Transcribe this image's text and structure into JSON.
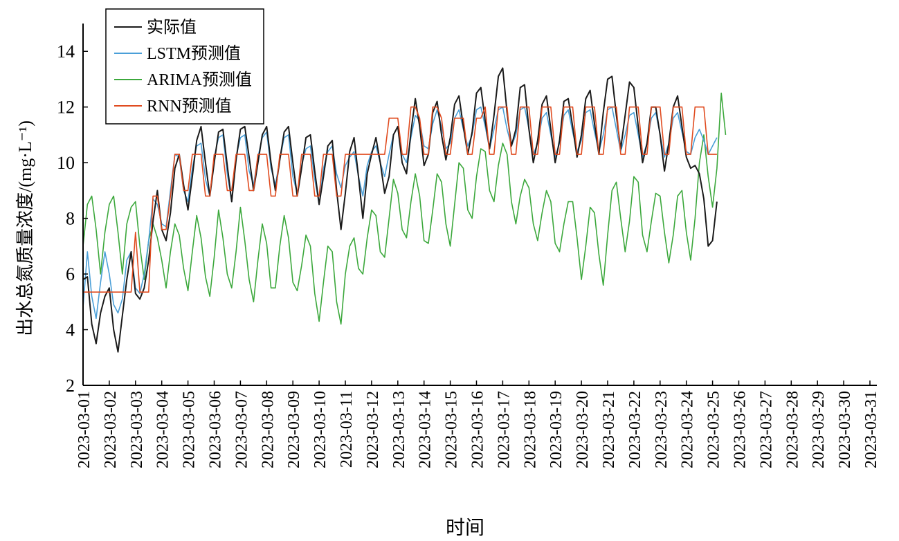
{
  "chart_data": {
    "type": "line",
    "title": "",
    "xlabel": "时间",
    "ylabel": "出水总氮质量浓度/(mg·L⁻¹)",
    "ylim": [
      2,
      15
    ],
    "y_ticks": [
      2,
      4,
      6,
      8,
      10,
      12,
      14
    ],
    "x_start_date": "2023-03-01",
    "x_end_date": "2023-03-31",
    "samples_per_day": 6,
    "x_tick_labels": [
      "2023-03-01",
      "2023-03-02",
      "2023-03-03",
      "2023-03-04",
      "2023-03-05",
      "2023-03-06",
      "2023-03-07",
      "2023-03-08",
      "2023-03-09",
      "2023-03-10",
      "2023-03-11",
      "2023-03-12",
      "2023-03-13",
      "2023-03-14",
      "2023-03-15",
      "2023-03-16",
      "2023-03-17",
      "2023-03-18",
      "2023-03-19",
      "2023-03-20",
      "2023-03-21",
      "2023-03-22",
      "2023-03-23",
      "2023-03-24",
      "2023-03-25",
      "2023-03-26",
      "2023-03-27",
      "2023-03-28",
      "2023-03-29",
      "2023-03-30",
      "2023-03-31"
    ],
    "legend_position": "top-left",
    "grid": false,
    "series": [
      {
        "name": "实际值",
        "color": "#1a1a1a",
        "values": [
          5.8,
          5.9,
          4.2,
          3.5,
          4.6,
          5.2,
          5.5,
          4.0,
          3.2,
          4.5,
          5.8,
          6.8,
          5.3,
          5.1,
          5.5,
          6.5,
          7.9,
          9.0,
          7.6,
          7.2,
          8.2,
          9.8,
          10.3,
          9.2,
          8.3,
          9.5,
          10.8,
          11.3,
          10.0,
          8.8,
          10.0,
          11.1,
          11.2,
          9.9,
          8.6,
          10.1,
          11.2,
          11.3,
          10.2,
          9.0,
          10.0,
          11.0,
          11.3,
          10.0,
          9.0,
          10.1,
          11.1,
          11.3,
          10.0,
          8.8,
          9.8,
          10.9,
          11.0,
          9.7,
          8.5,
          9.5,
          10.6,
          10.8,
          9.0,
          7.6,
          8.9,
          10.4,
          10.9,
          9.5,
          8.0,
          9.6,
          10.3,
          10.9,
          10.0,
          8.9,
          9.5,
          11.0,
          11.3,
          10.0,
          9.6,
          11.1,
          12.3,
          11.3,
          9.9,
          10.3,
          11.8,
          12.2,
          11.0,
          10.1,
          10.9,
          12.1,
          12.4,
          11.3,
          10.3,
          11.1,
          12.5,
          12.7,
          11.5,
          10.5,
          11.7,
          13.1,
          13.4,
          11.8,
          10.6,
          11.2,
          12.7,
          12.8,
          11.2,
          10.0,
          10.8,
          12.1,
          12.4,
          11.2,
          10.0,
          10.8,
          12.2,
          12.3,
          11.3,
          10.2,
          11.0,
          12.3,
          12.6,
          11.4,
          10.3,
          11.8,
          13.0,
          13.1,
          11.7,
          10.5,
          11.7,
          12.9,
          12.7,
          11.3,
          10.0,
          10.7,
          12.0,
          12.0,
          11.0,
          9.7,
          10.7,
          12.0,
          12.4,
          11.3,
          10.2,
          9.8,
          9.9,
          9.6,
          8.7,
          7.0,
          7.2,
          8.6
        ]
      },
      {
        "name": "LSTM预测值",
        "color": "#4a9fd8",
        "values": [
          4.8,
          6.8,
          5.2,
          4.4,
          5.7,
          6.8,
          6.0,
          4.9,
          4.6,
          5.1,
          6.5,
          6.8,
          5.5,
          5.3,
          6.0,
          7.2,
          8.7,
          8.5,
          7.8,
          7.7,
          9.0,
          10.3,
          10.2,
          9.0,
          8.6,
          9.8,
          10.6,
          10.7,
          9.4,
          8.8,
          10.2,
          10.9,
          11.0,
          9.6,
          8.6,
          10.2,
          10.9,
          11.0,
          9.7,
          9.2,
          10.2,
          10.9,
          11.1,
          9.8,
          9.2,
          10.1,
          10.9,
          11.0,
          9.5,
          8.9,
          9.9,
          10.5,
          10.6,
          9.4,
          8.5,
          9.8,
          10.4,
          10.6,
          9.6,
          9.1,
          9.9,
          10.2,
          10.4,
          9.5,
          8.8,
          9.9,
          10.4,
          10.6,
          10.0,
          9.5,
          10.3,
          11.0,
          11.3,
          10.3,
          10.0,
          10.9,
          11.7,
          11.5,
          10.6,
          10.5,
          11.4,
          11.9,
          11.3,
          10.5,
          10.7,
          11.6,
          11.9,
          11.2,
          10.6,
          11.0,
          11.9,
          12.0,
          11.3,
          10.5,
          11.2,
          11.9,
          12.0,
          11.2,
          10.6,
          11.0,
          11.9,
          12.0,
          11.2,
          10.3,
          10.7,
          11.6,
          11.8,
          11.0,
          10.2,
          10.7,
          11.7,
          11.9,
          11.1,
          10.4,
          10.8,
          11.8,
          11.9,
          11.1,
          10.4,
          11.0,
          11.9,
          12.0,
          11.2,
          10.4,
          11.0,
          11.7,
          11.8,
          11.0,
          10.2,
          10.7,
          11.6,
          11.8,
          11.0,
          10.2,
          10.7,
          11.6,
          11.8,
          11.1,
          10.4,
          10.3,
          10.9,
          11.2,
          10.8,
          10.3,
          10.6,
          10.9
        ]
      },
      {
        "name": "ARIMA预测值",
        "color": "#3ca83c",
        "values": [
          7.0,
          8.5,
          8.8,
          7.6,
          6.0,
          7.5,
          8.5,
          8.8,
          7.5,
          6.0,
          7.8,
          8.4,
          8.6,
          7.0,
          5.8,
          7.2,
          7.8,
          7.3,
          6.5,
          5.5,
          6.8,
          7.8,
          7.4,
          6.2,
          5.4,
          6.8,
          8.1,
          7.3,
          5.9,
          5.2,
          6.6,
          8.3,
          7.3,
          6.0,
          5.5,
          6.8,
          8.4,
          7.2,
          5.8,
          5.0,
          6.5,
          7.8,
          7.1,
          5.5,
          5.5,
          7.0,
          8.1,
          7.3,
          5.7,
          5.4,
          6.3,
          7.4,
          7.0,
          5.3,
          4.3,
          5.7,
          7.0,
          6.8,
          5.0,
          4.2,
          6.0,
          7.0,
          7.3,
          6.2,
          6.0,
          7.3,
          8.3,
          8.1,
          6.8,
          6.6,
          8.0,
          9.4,
          8.9,
          7.6,
          7.3,
          8.6,
          9.6,
          8.8,
          7.2,
          7.1,
          8.3,
          9.6,
          9.3,
          7.8,
          7.0,
          8.5,
          10.0,
          9.8,
          8.3,
          8.0,
          9.5,
          10.5,
          10.4,
          9.0,
          8.6,
          9.9,
          10.7,
          10.3,
          8.6,
          7.8,
          8.8,
          9.4,
          9.1,
          7.8,
          7.2,
          8.2,
          9.0,
          8.6,
          7.1,
          6.8,
          7.8,
          8.6,
          8.6,
          7.3,
          5.8,
          7.0,
          8.4,
          8.2,
          6.7,
          5.6,
          7.4,
          9.0,
          9.3,
          8.0,
          6.8,
          7.9,
          9.5,
          9.3,
          7.4,
          6.8,
          7.9,
          8.9,
          8.8,
          7.5,
          6.4,
          7.4,
          8.8,
          9.0,
          7.5,
          6.5,
          8.0,
          10.0,
          11.0,
          9.5,
          8.4,
          9.8,
          12.5,
          11.0
        ]
      },
      {
        "name": "RNN预测值",
        "color": "#e04b1f",
        "values": [
          5.35,
          5.35,
          5.35,
          5.35,
          5.35,
          5.35,
          5.35,
          5.35,
          5.35,
          5.35,
          5.35,
          5.35,
          7.5,
          5.35,
          5.35,
          5.35,
          8.8,
          8.8,
          7.6,
          7.6,
          8.8,
          10.3,
          10.3,
          9.0,
          9.0,
          10.3,
          10.3,
          10.3,
          8.8,
          8.8,
          10.3,
          10.3,
          10.3,
          9.0,
          9.0,
          10.3,
          10.3,
          10.3,
          9.0,
          9.0,
          10.3,
          10.3,
          10.3,
          8.8,
          8.8,
          10.3,
          10.3,
          10.3,
          8.8,
          8.8,
          10.3,
          10.3,
          10.3,
          8.8,
          8.8,
          10.3,
          10.3,
          10.3,
          8.8,
          8.8,
          10.3,
          10.3,
          10.3,
          10.3,
          10.3,
          10.3,
          10.3,
          10.3,
          10.3,
          10.3,
          11.6,
          11.6,
          11.6,
          10.3,
          10.3,
          12.0,
          12.0,
          11.6,
          10.3,
          10.3,
          12.0,
          12.0,
          11.6,
          10.3,
          10.3,
          11.6,
          11.6,
          11.6,
          10.3,
          10.3,
          11.6,
          11.6,
          12.0,
          10.3,
          10.3,
          12.0,
          12.0,
          12.0,
          10.3,
          10.3,
          12.0,
          12.0,
          12.0,
          10.3,
          10.3,
          12.0,
          12.0,
          12.0,
          10.3,
          10.3,
          12.0,
          12.0,
          12.0,
          10.3,
          10.3,
          12.0,
          12.0,
          12.0,
          10.3,
          10.3,
          12.0,
          12.0,
          12.0,
          10.3,
          10.3,
          12.0,
          12.0,
          12.0,
          10.3,
          10.3,
          12.0,
          12.0,
          12.0,
          10.3,
          10.3,
          12.0,
          12.0,
          12.0,
          10.3,
          10.3,
          12.0,
          12.0,
          12.0,
          10.3,
          10.3,
          10.3
        ]
      }
    ]
  }
}
